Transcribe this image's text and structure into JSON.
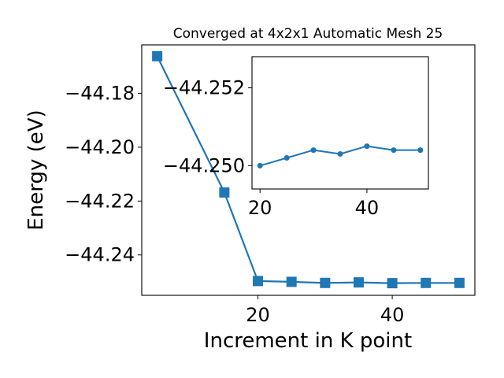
{
  "chart_data": [
    {
      "type": "line",
      "title": "Converged at 4x2x1 Automatic Mesh 25",
      "xlabel": "Increment in K point",
      "ylabel": "Energy (eV)",
      "xlim": [
        2.7,
        52.3
      ],
      "ylim": [
        -44.255,
        -44.162
      ],
      "xticks": [
        20,
        40
      ],
      "yticks": [
        -44.18,
        -44.2,
        -44.22,
        -44.24
      ],
      "xtick_labels": [
        "20",
        "40"
      ],
      "ytick_labels": [
        "−44.18",
        "−44.20",
        "−44.22",
        "−44.24"
      ],
      "grid": false,
      "marker": "square",
      "color": "#1f77b4",
      "series": [
        {
          "x": [
            5,
            15,
            20,
            25,
            30,
            35,
            40,
            45,
            50
          ],
          "y": [
            -44.1662,
            -44.2168,
            -44.2497,
            -44.25,
            -44.2504,
            -44.2502,
            -44.2505,
            -44.2504,
            -44.2504
          ]
        }
      ]
    },
    {
      "type": "line",
      "title": "",
      "xlabel": "",
      "ylabel": "",
      "placement": "inset-top-right",
      "xlim": [
        18.5,
        51.5
      ],
      "ylim": [
        -44.2494,
        -44.2528
      ],
      "xticks": [
        20,
        40
      ],
      "yticks": [
        -44.252,
        -44.25
      ],
      "xtick_labels": [
        "20",
        "40"
      ],
      "ytick_labels": [
        "−44.252",
        "−44.250"
      ],
      "y_axis_inverted": true,
      "grid": false,
      "marker": "circle",
      "color": "#1f77b4",
      "series": [
        {
          "x": [
            20,
            25,
            30,
            35,
            40,
            45,
            50
          ],
          "y": [
            -44.25,
            -44.2502,
            -44.2504,
            -44.2503,
            -44.2505,
            -44.2504,
            -44.2504
          ]
        }
      ]
    }
  ]
}
